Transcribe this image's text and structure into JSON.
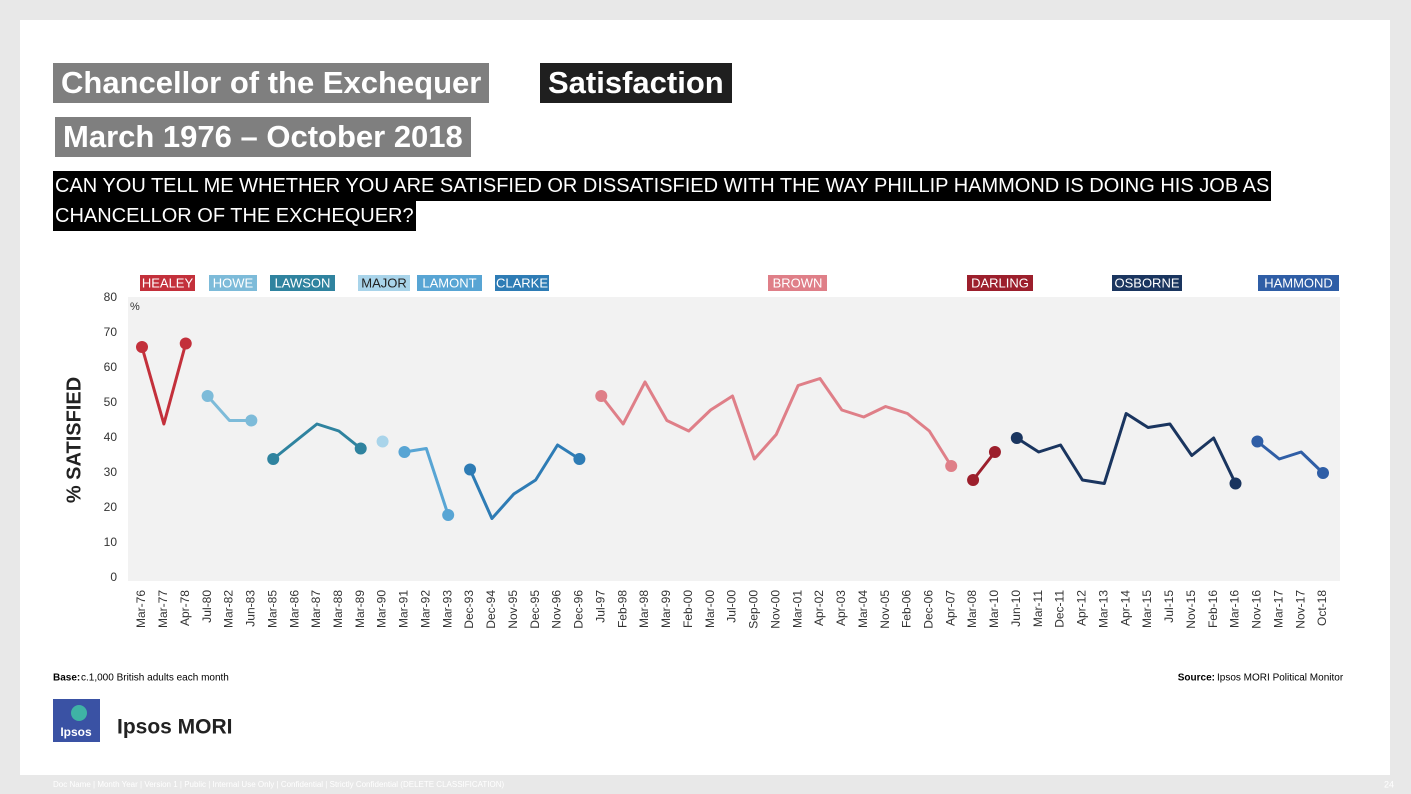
{
  "header": {
    "title": "Chancellor of the Exchequer",
    "title_tag": "Satisfaction",
    "subtitle": "March 1976 – October 2018",
    "question": [
      "CAN YOU TELL ME WHETHER YOU ARE SATISFIED OR DISSATISFIED WITH THE WAY PHILLIP HAMMOND IS DOING HIS JOB AS",
      "CHANCELLOR OF THE EXCHEQUER?"
    ]
  },
  "chart_data": {
    "type": "line",
    "y_label": "% SATISFIED",
    "y_unit": "%",
    "categories": [
      "Mar-76",
      "Mar-77",
      "Apr-78",
      "Jul-80",
      "Mar-82",
      "Jun-83",
      "Mar-85",
      "Mar-86",
      "Mar-87",
      "Mar-88",
      "Mar-89",
      "Mar-90",
      "Mar-91",
      "Mar-92",
      "Mar-93",
      "Dec-93",
      "Dec-94",
      "Nov-95",
      "Dec-95",
      "Nov-96",
      "Dec-96",
      "Jul-97",
      "Feb-98",
      "Mar-98",
      "Mar-99",
      "Feb-00",
      "Mar-00",
      "Jul-00",
      "Sep-00",
      "Nov-00",
      "Mar-01",
      "Apr-02",
      "Apr-03",
      "Mar-04",
      "Nov-05",
      "Feb-06",
      "Dec-06",
      "Apr-07",
      "Mar-08",
      "Mar-10",
      "Jun-10",
      "Mar-11",
      "Dec-11",
      "Apr-12",
      "Mar-13",
      "Apr-14",
      "Mar-15",
      "Jul-15",
      "Nov-15",
      "Feb-16",
      "Mar-16",
      "Nov-16",
      "Mar-17",
      "Nov-17",
      "Oct-18"
    ],
    "series": [
      {
        "name": "HEALEY",
        "color": "#c3303b",
        "values": [
          66,
          44,
          67,
          null,
          null,
          null,
          null,
          null,
          null,
          null,
          null,
          null,
          null,
          null,
          null,
          null,
          null,
          null,
          null,
          null,
          null,
          null,
          null,
          null,
          null,
          null,
          null,
          null,
          null,
          null,
          null,
          null,
          null,
          null,
          null,
          null,
          null,
          null,
          null,
          null,
          null,
          null,
          null,
          null,
          null,
          null,
          null,
          null,
          null,
          null,
          null,
          null,
          null,
          null,
          null
        ]
      },
      {
        "name": "HOWE",
        "color": "#7dbbd9",
        "values": [
          null,
          null,
          null,
          52,
          45,
          45,
          null,
          null,
          null,
          null,
          null,
          null,
          null,
          null,
          null,
          null,
          null,
          null,
          null,
          null,
          null,
          null,
          null,
          null,
          null,
          null,
          null,
          null,
          null,
          null,
          null,
          null,
          null,
          null,
          null,
          null,
          null,
          null,
          null,
          null,
          null,
          null,
          null,
          null,
          null,
          null,
          null,
          null,
          null,
          null,
          null,
          null,
          null,
          null,
          null
        ]
      },
      {
        "name": "LAWSON",
        "color": "#2f839f",
        "values": [
          null,
          null,
          null,
          null,
          null,
          null,
          34,
          39,
          44,
          42,
          37,
          null,
          null,
          null,
          null,
          null,
          null,
          null,
          null,
          null,
          null,
          null,
          null,
          null,
          null,
          null,
          null,
          null,
          null,
          null,
          null,
          null,
          null,
          null,
          null,
          null,
          null,
          null,
          null,
          null,
          null,
          null,
          null,
          null,
          null,
          null,
          null,
          null,
          null,
          null,
          null,
          null,
          null,
          null,
          null
        ]
      },
      {
        "name": "MAJOR",
        "color": "#a9d4ea",
        "values": [
          null,
          null,
          null,
          null,
          null,
          null,
          null,
          null,
          null,
          null,
          null,
          39,
          null,
          null,
          null,
          null,
          null,
          null,
          null,
          null,
          null,
          null,
          null,
          null,
          null,
          null,
          null,
          null,
          null,
          null,
          null,
          null,
          null,
          null,
          null,
          null,
          null,
          null,
          null,
          null,
          null,
          null,
          null,
          null,
          null,
          null,
          null,
          null,
          null,
          null,
          null,
          null,
          null,
          null,
          null
        ]
      },
      {
        "name": "LAMONT",
        "color": "#58a5d4",
        "values": [
          null,
          null,
          null,
          null,
          null,
          null,
          null,
          null,
          null,
          null,
          null,
          null,
          36,
          37,
          18,
          null,
          null,
          null,
          null,
          null,
          null,
          null,
          null,
          null,
          null,
          null,
          null,
          null,
          null,
          null,
          null,
          null,
          null,
          null,
          null,
          null,
          null,
          null,
          null,
          null,
          null,
          null,
          null,
          null,
          null,
          null,
          null,
          null,
          null,
          null,
          null,
          null,
          null,
          null,
          null
        ]
      },
      {
        "name": "CLARKE",
        "color": "#2e7cb5",
        "values": [
          null,
          null,
          null,
          null,
          null,
          null,
          null,
          null,
          null,
          null,
          null,
          null,
          null,
          null,
          null,
          31,
          17,
          24,
          28,
          38,
          34,
          null,
          null,
          null,
          null,
          null,
          null,
          null,
          null,
          null,
          null,
          null,
          null,
          null,
          null,
          null,
          null,
          null,
          null,
          null,
          null,
          null,
          null,
          null,
          null,
          null,
          null,
          null,
          null,
          null,
          null,
          null,
          null,
          null,
          null
        ]
      },
      {
        "name": "BROWN",
        "color": "#df7f88",
        "values": [
          null,
          null,
          null,
          null,
          null,
          null,
          null,
          null,
          null,
          null,
          null,
          null,
          null,
          null,
          null,
          null,
          null,
          null,
          null,
          null,
          null,
          52,
          44,
          56,
          45,
          42,
          48,
          52,
          34,
          41,
          55,
          57,
          48,
          46,
          49,
          47,
          42,
          32,
          null,
          null,
          null,
          null,
          null,
          null,
          null,
          null,
          null,
          null,
          null,
          null,
          null,
          null,
          null,
          null,
          null
        ]
      },
      {
        "name": "DARLING",
        "color": "#9c1f2c",
        "values": [
          null,
          null,
          null,
          null,
          null,
          null,
          null,
          null,
          null,
          null,
          null,
          null,
          null,
          null,
          null,
          null,
          null,
          null,
          null,
          null,
          null,
          null,
          null,
          null,
          null,
          null,
          null,
          null,
          null,
          null,
          null,
          null,
          null,
          null,
          null,
          null,
          null,
          null,
          28,
          36,
          null,
          null,
          null,
          null,
          null,
          null,
          null,
          null,
          null,
          null,
          null,
          null,
          null,
          null,
          null
        ]
      },
      {
        "name": "OSBORNE",
        "color": "#1a355f",
        "values": [
          null,
          null,
          null,
          null,
          null,
          null,
          null,
          null,
          null,
          null,
          null,
          null,
          null,
          null,
          null,
          null,
          null,
          null,
          null,
          null,
          null,
          null,
          null,
          null,
          null,
          null,
          null,
          null,
          null,
          null,
          null,
          null,
          null,
          null,
          null,
          null,
          null,
          null,
          null,
          null,
          40,
          36,
          38,
          28,
          27,
          47,
          43,
          44,
          35,
          40,
          27,
          null,
          null,
          null,
          null
        ]
      },
      {
        "name": "HAMMOND",
        "color": "#2f5ea6",
        "values": [
          null,
          null,
          null,
          null,
          null,
          null,
          null,
          null,
          null,
          null,
          null,
          null,
          null,
          null,
          null,
          null,
          null,
          null,
          null,
          null,
          null,
          null,
          null,
          null,
          null,
          null,
          null,
          null,
          null,
          null,
          null,
          null,
          null,
          null,
          null,
          null,
          null,
          null,
          null,
          null,
          null,
          null,
          null,
          null,
          null,
          null,
          null,
          null,
          null,
          null,
          null,
          39,
          34,
          36,
          30
        ]
      }
    ],
    "ylim": [
      0,
      80
    ],
    "yticks": [
      0,
      10,
      20,
      30,
      40,
      50,
      60,
      70,
      80
    ]
  },
  "footer": {
    "base_label": "Base:",
    "base": "c.1,000 British adults each month",
    "source_label": "Source:",
    "source": "Ipsos MORI Political Monitor",
    "logo": "Ipsos",
    "brand": "Ipsos MORI",
    "doc": "Doc Name | Month Year | Version 1 | Public | Internal Use Only | Confidential | Strictly Confidential (DELETE CLASSIFICATION)",
    "page": "24"
  }
}
